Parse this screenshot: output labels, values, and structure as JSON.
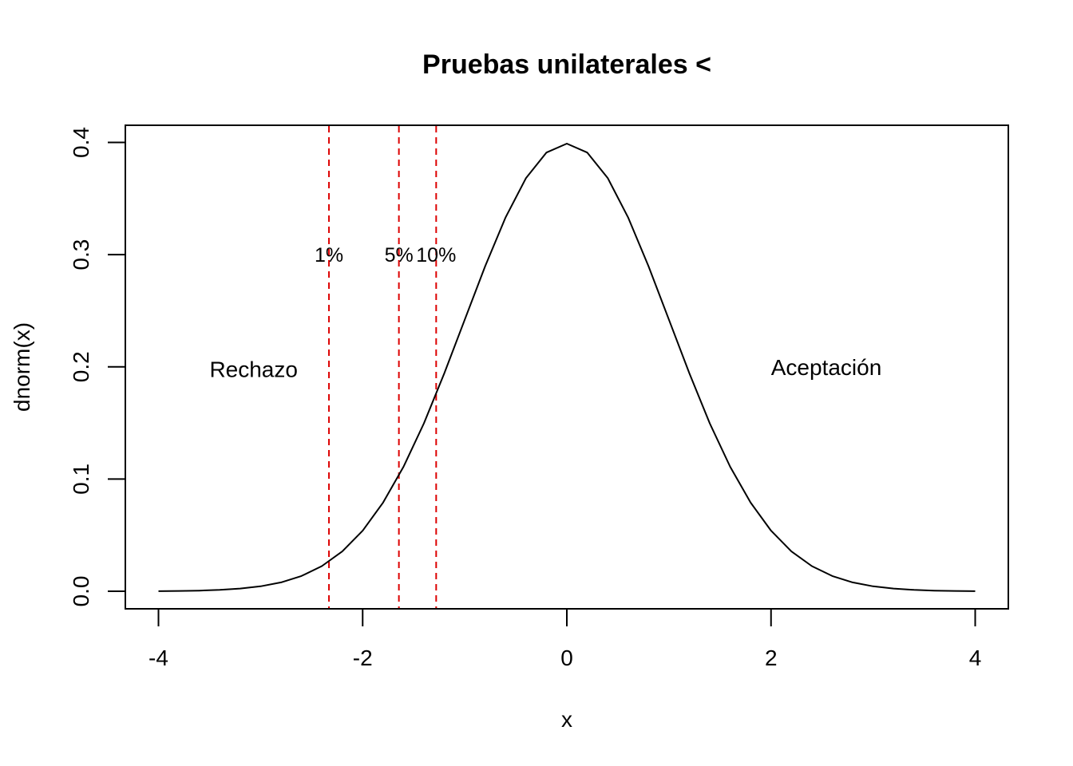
{
  "chart_data": {
    "type": "line",
    "title": "Pruebas unilaterales <",
    "xlabel": "x",
    "ylabel": "dnorm(x)",
    "xlim": [
      -4,
      4
    ],
    "ylim": [
      0,
      0.4
    ],
    "x_ticks": [
      -4,
      -2,
      0,
      2,
      4
    ],
    "x_tick_labels": [
      "-4",
      "-2",
      "0",
      "2",
      "4"
    ],
    "y_ticks": [
      0.0,
      0.1,
      0.2,
      0.3,
      0.4
    ],
    "y_tick_labels": [
      "0.0",
      "0.1",
      "0.2",
      "0.3",
      "0.4"
    ],
    "grid": false,
    "series": [
      {
        "x": [
          -4.0,
          -3.8,
          -3.6,
          -3.4,
          -3.2,
          -3.0,
          -2.8,
          -2.6,
          -2.4,
          -2.2,
          -2.0,
          -1.8,
          -1.6,
          -1.4,
          -1.2,
          -1.0,
          -0.8,
          -0.6,
          -0.4,
          -0.2,
          0.0,
          0.2,
          0.4,
          0.6,
          0.8,
          1.0,
          1.2,
          1.4,
          1.6,
          1.8,
          2.0,
          2.2,
          2.4,
          2.6,
          2.8,
          3.0,
          3.2,
          3.4,
          3.6,
          3.8,
          4.0
        ],
        "y": [
          0.0001,
          0.0003,
          0.0006,
          0.0012,
          0.0024,
          0.0044,
          0.0079,
          0.0136,
          0.0224,
          0.0355,
          0.054,
          0.079,
          0.1109,
          0.1497,
          0.1942,
          0.242,
          0.2897,
          0.3332,
          0.3683,
          0.391,
          0.3989,
          0.391,
          0.3683,
          0.3332,
          0.2897,
          0.242,
          0.1942,
          0.1497,
          0.1109,
          0.079,
          0.054,
          0.0355,
          0.0224,
          0.0136,
          0.0079,
          0.0044,
          0.0024,
          0.0012,
          0.0006,
          0.0003,
          0.0001
        ],
        "color": "#000000"
      }
    ],
    "vlines": [
      {
        "x": -2.33,
        "label": "1%",
        "label_y": 0.3
      },
      {
        "x": -1.645,
        "label": "5%",
        "label_y": 0.3
      },
      {
        "x": -1.28,
        "label": "10%",
        "label_y": 0.3
      }
    ],
    "vline_color": "#dd0000",
    "annotations": [
      {
        "text": "Rechazo",
        "x": -3.5,
        "y": 0.198
      },
      {
        "text": "Aceptación",
        "x": 2.0,
        "y": 0.2
      }
    ]
  }
}
